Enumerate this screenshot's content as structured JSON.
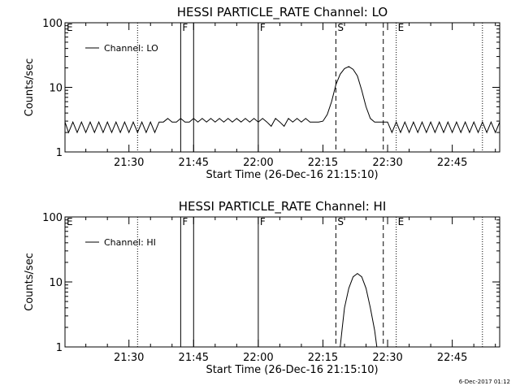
{
  "chart_data": [
    {
      "type": "line",
      "title": "HESSI PARTICLE_RATE Channel: LO",
      "xlabel": "Start Time (26-Dec-16 21:15:10)",
      "ylabel": "Counts/sec",
      "y_scale": "log",
      "ylim": [
        1,
        100
      ],
      "y_tick_labels": [
        "1",
        "10",
        "100"
      ],
      "xlim": [
        "21:15:10",
        "22:56:00"
      ],
      "x_tick_labels": [
        "21:30",
        "21:45",
        "22:00",
        "22:15",
        "22:30",
        "22:45"
      ],
      "legend": "top-left",
      "grid": false,
      "series": [
        {
          "name": "Channel: LO",
          "x": [
            "21:15:10",
            "21:16",
            "21:17",
            "21:18",
            "21:19",
            "21:20",
            "21:21",
            "21:22",
            "21:23",
            "21:24",
            "21:25",
            "21:26",
            "21:27",
            "21:28",
            "21:29",
            "21:30",
            "21:31",
            "21:32",
            "21:33",
            "21:34",
            "21:35",
            "21:36",
            "21:37",
            "21:38",
            "21:39",
            "21:40",
            "21:41",
            "21:42",
            "21:43",
            "21:44",
            "21:45",
            "21:46",
            "21:47",
            "21:48",
            "21:49",
            "21:50",
            "21:51",
            "21:52",
            "21:53",
            "21:54",
            "21:55",
            "21:56",
            "21:57",
            "21:58",
            "21:59",
            "22:00",
            "22:01",
            "22:02",
            "22:03",
            "22:04",
            "22:05",
            "22:06",
            "22:07",
            "22:08",
            "22:09",
            "22:10",
            "22:11",
            "22:12",
            "22:13",
            "22:14",
            "22:15",
            "22:16",
            "22:17",
            "22:18",
            "22:19",
            "22:20",
            "22:21",
            "22:22",
            "22:23",
            "22:24",
            "22:25",
            "22:26",
            "22:27",
            "22:28",
            "22:29",
            "22:30",
            "22:31",
            "22:32",
            "22:33",
            "22:34",
            "22:35",
            "22:36",
            "22:37",
            "22:38",
            "22:39",
            "22:40",
            "22:41",
            "22:42",
            "22:43",
            "22:44",
            "22:45",
            "22:46",
            "22:47",
            "22:48",
            "22:49",
            "22:50",
            "22:51",
            "22:52",
            "22:53",
            "22:54",
            "22:55",
            "22:56"
          ],
          "y": [
            2.9,
            2.0,
            2.9,
            2.0,
            2.9,
            2.0,
            2.9,
            2.0,
            2.9,
            2.0,
            2.9,
            2.0,
            2.9,
            2.0,
            2.9,
            2.0,
            2.9,
            2.0,
            2.9,
            2.0,
            2.9,
            2.0,
            2.9,
            2.9,
            3.3,
            2.9,
            2.9,
            3.3,
            2.9,
            2.9,
            3.3,
            2.9,
            3.3,
            2.9,
            3.3,
            2.9,
            3.3,
            2.9,
            3.3,
            2.9,
            3.3,
            2.9,
            3.3,
            2.9,
            3.3,
            2.9,
            3.3,
            2.9,
            2.5,
            3.3,
            2.9,
            2.5,
            3.3,
            2.9,
            3.3,
            2.9,
            3.3,
            2.9,
            2.9,
            2.9,
            3.0,
            3.8,
            6.0,
            11.0,
            16.0,
            19.5,
            21.0,
            19.0,
            15.0,
            9.0,
            5.0,
            3.3,
            2.9,
            2.9,
            2.9,
            2.9,
            2.0,
            2.9,
            2.0,
            2.9,
            2.0,
            2.9,
            2.0,
            2.9,
            2.0,
            2.9,
            2.0,
            2.9,
            2.0,
            2.9,
            2.0,
            2.9,
            2.0,
            2.9,
            2.0,
            2.9,
            2.0,
            2.9,
            2.0,
            2.9,
            2.0,
            2.9
          ]
        }
      ],
      "annotations": [
        {
          "label": "E",
          "time": "21:15:10",
          "style": "dotted"
        },
        {
          "label": "",
          "time": "21:32",
          "style": "dotted"
        },
        {
          "label": "F",
          "time": "21:42",
          "style": "solid"
        },
        {
          "label": "",
          "time": "21:45",
          "style": "solid"
        },
        {
          "label": "F",
          "time": "22:00",
          "style": "solid"
        },
        {
          "label": "S",
          "time": "22:18",
          "style": "dashed"
        },
        {
          "label": "",
          "time": "22:29",
          "style": "dashed"
        },
        {
          "label": "E",
          "time": "22:32",
          "style": "dotted"
        },
        {
          "label": "",
          "time": "22:52",
          "style": "dotted"
        }
      ]
    },
    {
      "type": "line",
      "title": "HESSI PARTICLE_RATE Channel: HI",
      "xlabel": "Start Time (26-Dec-16 21:15:10)",
      "ylabel": "Counts/sec",
      "y_scale": "log",
      "ylim": [
        1,
        100
      ],
      "y_tick_labels": [
        "1",
        "10",
        "100"
      ],
      "xlim": [
        "21:15:10",
        "22:56:00"
      ],
      "x_tick_labels": [
        "21:30",
        "21:45",
        "22:00",
        "22:15",
        "22:30",
        "22:45"
      ],
      "legend": "top-left",
      "grid": false,
      "series": [
        {
          "name": "Channel: HI",
          "x": [
            "22:19",
            "22:19:30",
            "22:20",
            "22:21",
            "22:22",
            "22:23",
            "22:24",
            "22:25",
            "22:26",
            "22:27",
            "22:27:30"
          ],
          "y": [
            1.0,
            2.0,
            4.0,
            8.0,
            12.0,
            13.5,
            12.0,
            8.0,
            4.0,
            1.8,
            1.0
          ]
        }
      ],
      "annotations": [
        {
          "label": "E",
          "time": "21:15:10",
          "style": "dotted"
        },
        {
          "label": "",
          "time": "21:32",
          "style": "dotted"
        },
        {
          "label": "F",
          "time": "21:42",
          "style": "solid"
        },
        {
          "label": "",
          "time": "21:45",
          "style": "solid"
        },
        {
          "label": "F",
          "time": "22:00",
          "style": "solid"
        },
        {
          "label": "S",
          "time": "22:18",
          "style": "dashed"
        },
        {
          "label": "",
          "time": "22:29",
          "style": "dashed"
        },
        {
          "label": "E",
          "time": "22:32",
          "style": "dotted"
        },
        {
          "label": "",
          "time": "22:52",
          "style": "dotted"
        }
      ]
    }
  ],
  "footer": "6-Dec-2017 01:12"
}
